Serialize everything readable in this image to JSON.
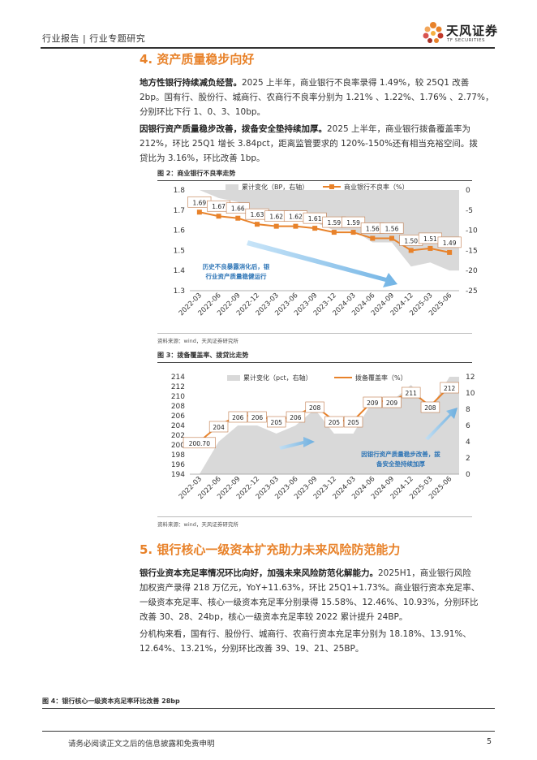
{
  "header": {
    "left": "行业报告 | 行业专题研究",
    "logo_cn": "天风证券",
    "logo_en": "TF SECURITIES"
  },
  "section4": {
    "title": "4. 资产质量稳步向好",
    "p1_bold": "地方性银行持续减负经营。",
    "p1_l1": "2025 上半年，商业银行不良率录得 1.49%，较 25Q1 改善",
    "p1_l2": "2bp。国有行、股份行、城商行、农商行不良率分别为 1.21% 、1.22%、1.76% 、2.77%，",
    "p1_l3": "分别环比下行 1、0、3、10bp。",
    "p2_bold": "因银行资产质量稳步改善，拨备安全垫持续加厚。",
    "p2_l1": "2025 上半年，商业银行拨备覆盖率为",
    "p2_l2": "212%，环比 25Q1 增长 3.84pct，距离监管要求的 120%-150%还有相当充裕空间。拨",
    "p2_l3": "贷比为 3.16%，环比改善 1bp。"
  },
  "fig2": {
    "title": "图 2：商业银行不良率走势",
    "source": "资料来源：wind，天风证券研究所"
  },
  "fig3": {
    "title": "图 3：拨备覆盖率、拨贷比走势",
    "source": "资料来源：wind，天风证券研究所"
  },
  "section5": {
    "title": "5. 银行核心一级资本扩充助力未来风险防范能力",
    "p1_bold": "银行业资本充足率情况环比向好，加强未来风险防范化解能力。",
    "p1_tail": "2025H1，商业银行风险",
    "p1_l2": "加权资产录得 218 万亿元，YoY+11.63%，环比 25Q1+1.73%。商业银行资本充足率、",
    "p1_l3": "一级资本充足率、核心一级资本充足率分别录得 15.58%、12.46%、10.93%，分别环比",
    "p1_l4": "改善 30、28、24bp，核心一级资本充足率较 2022 累计提升 24BP。",
    "p2_l1": "分机构来看，国有行、股份行、城商行、农商行资本充足率分别为 18.18%、13.91%、",
    "p2_l2": "12.64%、13.21%，分别环比改善 39、19、21、25BP。"
  },
  "fig4": {
    "title": "图 4：银行核心一级资本充足率环比改善 28bp"
  },
  "footer": {
    "disclaimer": "请务必阅读正文之后的信息披露和免责申明",
    "page": "5"
  },
  "colors": {
    "orange": "#e8822a",
    "area": "#d9d9d9",
    "arrow": "#5aa7e0",
    "annot": "#2e75b6"
  },
  "chart_data": [
    {
      "type": "line",
      "categories": [
        "2022-03",
        "2022-06",
        "2022-09",
        "2022-12",
        "2023-03",
        "2023-06",
        "2023-09",
        "2023-12",
        "2024-03",
        "2024-06",
        "2024-09",
        "2024-12",
        "2025-03",
        "2025-06"
      ],
      "series": [
        {
          "name": "商业银行不良率（%）",
          "axis": "left",
          "values": [
            1.69,
            1.67,
            1.66,
            1.63,
            1.62,
            1.62,
            1.61,
            1.59,
            1.59,
            1.56,
            1.56,
            1.5,
            1.51,
            1.49
          ]
        },
        {
          "name": "累计变化（BP，右轴）",
          "axis": "right",
          "type": "area",
          "values": [
            0,
            -2,
            -3,
            -6,
            -7,
            -7,
            -8,
            -10,
            -10,
            -13,
            -13,
            -19,
            -18,
            -20
          ]
        }
      ],
      "data_labels": [
        "1.69",
        "1.67",
        "1.66",
        "1.63",
        "1.62",
        "1.62",
        "1.61",
        "1.59",
        "1.59",
        "1.56",
        "1.56",
        "1.50",
        "1.51",
        "1.49"
      ],
      "y_left": {
        "min": 1.3,
        "max": 1.8,
        "ticks": [
          "1.3",
          "1.4",
          "1.5",
          "1.6",
          "1.7",
          "1.8"
        ]
      },
      "y_right": {
        "min": -25,
        "max": 0,
        "ticks": [
          "-25",
          "-20",
          "-15",
          "-10",
          "-5",
          "0"
        ]
      },
      "legend": [
        "累计变化（BP，右轴）",
        "商业银行不良率（%）"
      ],
      "annotation": [
        "历史不良暴露消化后，银",
        "行业资产质量稳健运行"
      ]
    },
    {
      "type": "line",
      "categories": [
        "2022-03",
        "2022-06",
        "2022-09",
        "2022-12",
        "2023-03",
        "2023-06",
        "2023-09",
        "2023-12",
        "2024-03",
        "2024-06",
        "2024-09",
        "2024-12",
        "2025-03",
        "2025-06"
      ],
      "series": [
        {
          "name": "拨备覆盖率（%）",
          "axis": "left",
          "values": [
            200.7,
            204,
            206,
            206,
            205,
            206,
            208,
            205,
            205,
            209,
            209,
            211,
            208,
            212
          ]
        },
        {
          "name": "累计变化（pct，右轴）",
          "axis": "right",
          "type": "area",
          "values": [
            0,
            4,
            6,
            6,
            5,
            6,
            8,
            5,
            5,
            9,
            9,
            11,
            8,
            12
          ]
        }
      ],
      "data_labels": [
        "200.70",
        "204",
        "206",
        "206",
        "205",
        "206",
        "208",
        "205",
        "205",
        "209",
        "209",
        "211",
        "208",
        "212"
      ],
      "y_left": {
        "min": 194,
        "max": 214,
        "ticks": [
          "194",
          "196",
          "198",
          "200",
          "202",
          "204",
          "206",
          "208",
          "210",
          "212",
          "214"
        ]
      },
      "y_right": {
        "min": 0,
        "max": 12,
        "ticks": [
          "0",
          "2",
          "4",
          "6",
          "8",
          "10",
          "12"
        ]
      },
      "legend": [
        "累计变化（pct，右轴）",
        "拨备覆盖率（%）"
      ],
      "annotation": [
        "因银行资产质量稳步改善，拨",
        "备安全垫持续加厚"
      ]
    }
  ]
}
